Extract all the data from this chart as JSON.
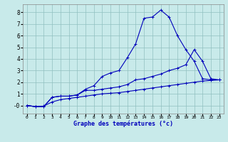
{
  "title": "Graphe des températures (°c)",
  "bg_color": "#c8eaea",
  "grid_color": "#90c0c0",
  "line_color": "#0000bb",
  "xlim": [
    -0.5,
    23.5
  ],
  "ylim": [
    -0.7,
    8.7
  ],
  "yticks": [
    0,
    1,
    2,
    3,
    4,
    5,
    6,
    7,
    8
  ],
  "ytick_labels": [
    "-0",
    "1",
    "2",
    "3",
    "4",
    "5",
    "6",
    "7",
    "8"
  ],
  "xticks": [
    0,
    1,
    2,
    3,
    4,
    5,
    6,
    7,
    8,
    9,
    10,
    11,
    12,
    13,
    14,
    15,
    16,
    17,
    18,
    19,
    20,
    21,
    22,
    23
  ],
  "hours": [
    0,
    1,
    2,
    3,
    4,
    5,
    6,
    7,
    8,
    9,
    10,
    11,
    12,
    13,
    14,
    15,
    16,
    17,
    18,
    19,
    20,
    21,
    22,
    23
  ],
  "line1": [
    0,
    -0.1,
    -0.1,
    0.7,
    0.8,
    0.8,
    0.9,
    1.4,
    1.7,
    2.5,
    2.8,
    3.0,
    4.1,
    5.3,
    7.5,
    7.6,
    8.2,
    7.6,
    6.0,
    4.8,
    3.8,
    2.3,
    2.2,
    2.2
  ],
  "line2": [
    0,
    -0.1,
    -0.1,
    0.7,
    0.8,
    0.8,
    0.9,
    1.3,
    1.3,
    1.4,
    1.5,
    1.6,
    1.8,
    2.2,
    2.3,
    2.5,
    2.7,
    3.0,
    3.2,
    3.5,
    4.8,
    3.8,
    2.3,
    2.2
  ],
  "line3": [
    0,
    -0.1,
    -0.05,
    0.3,
    0.5,
    0.6,
    0.7,
    0.8,
    0.9,
    1.0,
    1.05,
    1.1,
    1.2,
    1.3,
    1.4,
    1.5,
    1.6,
    1.7,
    1.8,
    1.9,
    2.0,
    2.1,
    2.15,
    2.2
  ]
}
